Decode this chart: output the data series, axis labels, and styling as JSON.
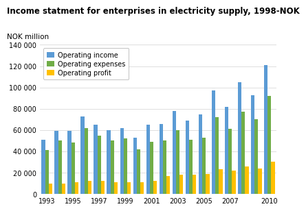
{
  "title": "Income statment for enterprises in electricity supply, 1998-NOK",
  "ylabel": "NOK million",
  "years": [
    1993,
    1994,
    1995,
    1996,
    1997,
    1998,
    1999,
    2000,
    2001,
    2002,
    2003,
    2004,
    2005,
    2006,
    2007,
    2008,
    2009,
    2010
  ],
  "operating_income": [
    51000,
    59000,
    59000,
    73000,
    65000,
    60000,
    62000,
    53000,
    65000,
    66000,
    78000,
    69000,
    75000,
    97000,
    82000,
    105000,
    93000,
    121000
  ],
  "operating_expenses": [
    41000,
    50000,
    48000,
    62000,
    55000,
    50000,
    52000,
    42000,
    49000,
    50000,
    60000,
    51000,
    53000,
    72000,
    61000,
    77000,
    70000,
    92000
  ],
  "operating_profit": [
    10000,
    10000,
    11000,
    12000,
    12000,
    11000,
    11000,
    11000,
    12000,
    17000,
    18000,
    18000,
    19000,
    23000,
    22000,
    26000,
    24000,
    30000
  ],
  "color_income": "#5b9bd5",
  "color_expenses": "#70ad47",
  "color_profit": "#ffc000",
  "ylim": [
    0,
    140000
  ],
  "yticks": [
    0,
    20000,
    40000,
    60000,
    80000,
    100000,
    120000,
    140000
  ],
  "ytick_labels": [
    "0",
    "20 000",
    "40 000",
    "60 000",
    "80 000",
    "100 000",
    "120 000",
    "140 000"
  ],
  "xtick_years": [
    1993,
    1995,
    1997,
    1999,
    2001,
    2003,
    2005,
    2007,
    2010
  ],
  "legend_labels": [
    "Operating income",
    "Operating expenses",
    "Operating profit"
  ],
  "background_color": "#ffffff",
  "grid_color": "#d9d9d9"
}
